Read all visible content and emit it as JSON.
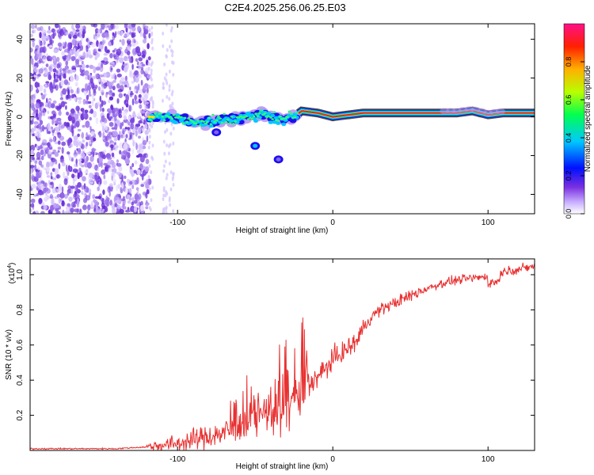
{
  "figure_title": "C2E4.2025.256.06.25.E03",
  "chart_data": [
    {
      "type": "heatmap",
      "title": "C2E4.2025.256.06.25.E03",
      "xlabel": "Height of straight line (km)",
      "ylabel": "Frequency (Hz)",
      "xlim": [
        -195,
        130
      ],
      "ylim": [
        -50,
        48
      ],
      "xticks": [
        -100,
        0,
        100
      ],
      "yticks": [
        -40,
        -20,
        0,
        20,
        40
      ],
      "colorbar": {
        "label": "Normalized spectral amplitude",
        "range": [
          0,
          1
        ],
        "ticks": [
          0,
          0.2,
          0.4,
          0.6,
          0.8
        ],
        "tick_labels": [
          "0.0",
          "0.2",
          "0.4",
          "0.6",
          "0.8"
        ],
        "colors": [
          "#ffffff",
          "#b090ff",
          "#6010d0",
          "#0000ff",
          "#00d0ff",
          "#00ff60",
          "#c0ff00",
          "#ffa000",
          "#ff2000",
          "#ff2080"
        ]
      },
      "noise_region_x": [
        -195,
        -120
      ],
      "signal_onset_x": -118,
      "signal_track": {
        "x": [
          -118,
          -105,
          -95,
          -85,
          -75,
          -65,
          -55,
          -45,
          -35,
          -25,
          -20,
          -10,
          0,
          10,
          20,
          30,
          40,
          60,
          80,
          90,
          100,
          110,
          130
        ],
        "freq": [
          0,
          0,
          -2,
          -3,
          -2,
          -1,
          0,
          1,
          -1,
          0,
          3,
          2,
          0,
          1,
          2,
          2,
          2,
          2,
          2,
          3,
          1,
          2,
          2
        ]
      },
      "secondary_blobs": [
        {
          "x": -50,
          "freq": -15
        },
        {
          "x": -75,
          "freq": -8
        },
        {
          "x": -35,
          "freq": -22
        }
      ]
    },
    {
      "type": "line",
      "xlabel": "Height of straight line (km)",
      "ylabel": "SNR (10 * v/v)",
      "scale_label": "(x10",
      "scale_exponent": "4",
      "xlim": [
        -195,
        130
      ],
      "ylim": [
        0,
        1.09
      ],
      "xticks": [
        -100,
        0,
        100
      ],
      "yticks": [
        0.2,
        0.4,
        0.6,
        0.8,
        1.0
      ],
      "ytick_labels": [
        "0.2",
        "0.4",
        "0.6",
        "0.8",
        "1.0"
      ],
      "line_color": "#e83030",
      "series": [
        {
          "name": "SNR",
          "x": [
            -195,
            -170,
            -140,
            -120,
            -110,
            -100,
            -90,
            -80,
            -70,
            -60,
            -50,
            -40,
            -30,
            -20,
            -15,
            -10,
            -5,
            0,
            5,
            10,
            15,
            20,
            25,
            30,
            40,
            50,
            60,
            70,
            80,
            90,
            100,
            105,
            110,
            120,
            130
          ],
          "y": [
            0.01,
            0.01,
            0.01,
            0.02,
            0.03,
            0.04,
            0.06,
            0.08,
            0.1,
            0.14,
            0.18,
            0.22,
            0.26,
            0.32,
            0.38,
            0.42,
            0.46,
            0.52,
            0.55,
            0.58,
            0.62,
            0.7,
            0.76,
            0.8,
            0.84,
            0.88,
            0.92,
            0.95,
            0.97,
            0.98,
            0.99,
            1.0,
            1.02,
            1.03,
            1.05
          ]
        }
      ]
    }
  ]
}
